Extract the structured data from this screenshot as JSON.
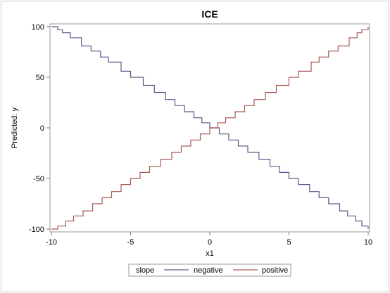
{
  "chart_data": {
    "type": "line",
    "title": "ICE",
    "xlabel": "x1",
    "ylabel": "Predicted: y",
    "xlim": [
      -10,
      10
    ],
    "ylim": [
      -100,
      100
    ],
    "x_ticks": [
      -10,
      -5,
      0,
      5,
      10
    ],
    "y_ticks": [
      -100,
      -50,
      0,
      50,
      100
    ],
    "grid": false,
    "step": true,
    "legend": {
      "title": "slope",
      "placement": "bottom-center",
      "entries": [
        "negative",
        "positive"
      ]
    },
    "series": [
      {
        "name": "negative",
        "color": "#5a5a8c",
        "x": [
          -10,
          -9.6,
          -9.3,
          -8.8,
          -8.1,
          -7.5,
          -6.9,
          -6.4,
          -5.6,
          -5,
          -4.2,
          -3.5,
          -2.8,
          -2.2,
          -1.6,
          -1,
          -0.5,
          0,
          0.6,
          1.2,
          1.8,
          2.4,
          3.1,
          3.8,
          4.4,
          5,
          5.6,
          6.3,
          6.9,
          7.5,
          8.2,
          8.7,
          9.2,
          9.6,
          10
        ],
        "y": [
          100,
          97,
          94,
          89,
          81,
          76,
          70,
          65,
          56,
          50,
          42,
          35,
          28,
          22,
          16,
          10,
          5,
          0,
          -6,
          -12,
          -18,
          -24,
          -31,
          -38,
          -44,
          -50,
          -56,
          -63,
          -69,
          -75,
          -82,
          -87,
          -92,
          -97,
          -100
        ]
      },
      {
        "name": "positive",
        "color": "#a85a52",
        "x": [
          -10,
          -9.6,
          -9.1,
          -8.6,
          -8,
          -7.4,
          -6.8,
          -6.2,
          -5.6,
          -5,
          -4.4,
          -3.8,
          -3.1,
          -2.4,
          -1.8,
          -1.2,
          -0.6,
          0,
          0.5,
          1,
          1.6,
          2.2,
          2.8,
          3.5,
          4.2,
          5,
          5.6,
          6.4,
          6.9,
          7.5,
          8.1,
          8.8,
          9.3,
          9.6,
          10
        ],
        "y": [
          -100,
          -97,
          -92,
          -87,
          -82,
          -75,
          -69,
          -63,
          -56,
          -50,
          -44,
          -38,
          -31,
          -24,
          -18,
          -12,
          -6,
          0,
          5,
          10,
          16,
          22,
          28,
          35,
          42,
          50,
          56,
          65,
          70,
          76,
          81,
          89,
          94,
          97,
          100
        ]
      }
    ]
  }
}
